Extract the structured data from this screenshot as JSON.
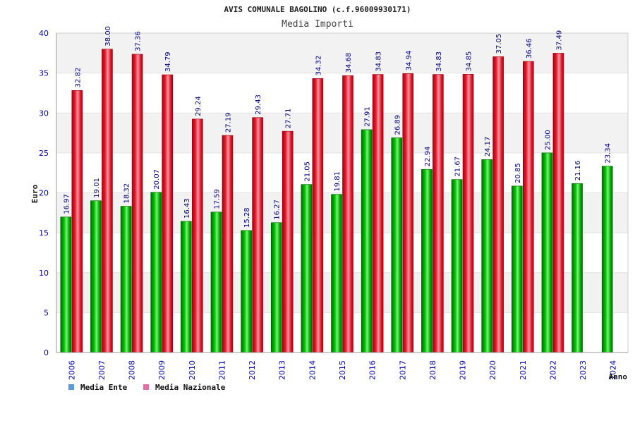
{
  "chart_data": {
    "type": "bar",
    "title": "AVIS COMUNALE BAGOLINO (c.f.96009930171)",
    "subtitle": "Media Importi",
    "ylabel": "Euro",
    "xlabel": "Anno",
    "ylim": [
      0,
      40
    ],
    "yticks": [
      0,
      5,
      10,
      15,
      20,
      25,
      30,
      35,
      40
    ],
    "grid": true,
    "legend_position": "bottom-left",
    "categories": [
      "2006",
      "2007",
      "2008",
      "2009",
      "2010",
      "2011",
      "2012",
      "2013",
      "2014",
      "2015",
      "2016",
      "2017",
      "2018",
      "2019",
      "2020",
      "2021",
      "2022",
      "2023",
      "2024"
    ],
    "series": [
      {
        "name": "Media Ente",
        "legend_color": "#5b9bd5",
        "bar_color": "#00b400",
        "values": [
          16.97,
          19.01,
          18.32,
          20.07,
          16.43,
          17.59,
          15.28,
          16.27,
          21.05,
          19.81,
          27.91,
          26.89,
          22.94,
          21.67,
          24.17,
          20.85,
          25.0,
          21.16,
          23.34
        ],
        "labels": [
          "16.97",
          "19.01",
          "18.32",
          "20.07",
          "16.43",
          "17.59",
          "15.28",
          "16.27",
          "21.05",
          "19.81",
          "27.91",
          "26.89",
          "22.94",
          "21.67",
          "24.17",
          "20.85",
          "25.00",
          "21.16",
          "23.34"
        ]
      },
      {
        "name": "Media Nazionale",
        "legend_color": "#e070a8",
        "bar_color": "#e8192c",
        "values": [
          32.82,
          38.0,
          37.36,
          34.79,
          29.24,
          27.19,
          29.43,
          27.71,
          34.32,
          34.68,
          34.83,
          34.94,
          34.83,
          34.85,
          37.05,
          36.46,
          37.49,
          null,
          null
        ],
        "labels": [
          "32.82",
          "38.00",
          "37.36",
          "34.79",
          "29.24",
          "27.19",
          "29.43",
          "27.71",
          "34.32",
          "34.68",
          "34.83",
          "34.94",
          "34.83",
          "34.85",
          "37.05",
          "36.46",
          "37.49",
          "",
          ""
        ]
      }
    ]
  }
}
